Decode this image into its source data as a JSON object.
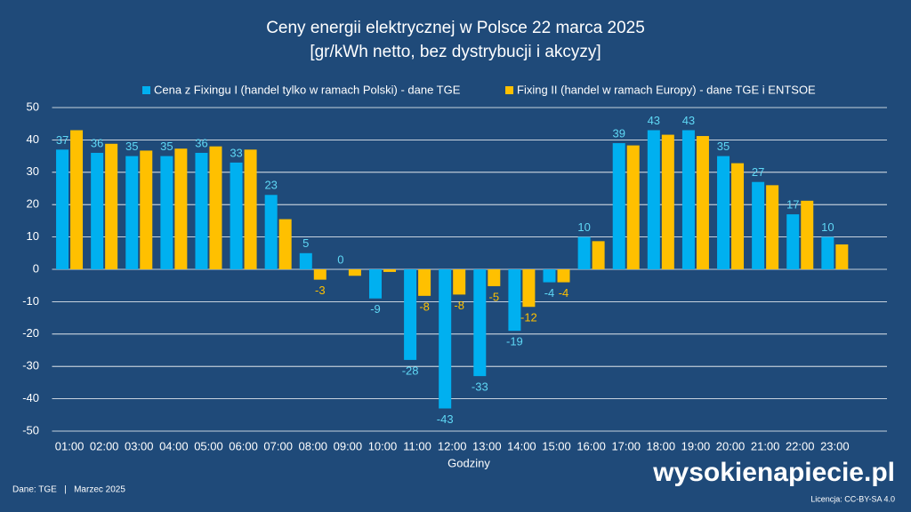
{
  "chart_data": {
    "type": "bar",
    "title": "Ceny energii elektrycznej w Polsce 22 marca 2025",
    "subtitle": "[gr/kWh netto, bez dystrybucji i akcyzy]",
    "x_label": "Godziny",
    "categories": [
      "01:00",
      "02:00",
      "03:00",
      "04:00",
      "05:00",
      "06:00",
      "07:00",
      "08:00",
      "09:00",
      "10:00",
      "11:00",
      "12:00",
      "13:00",
      "14:00",
      "15:00",
      "16:00",
      "17:00",
      "18:00",
      "19:00",
      "20:00",
      "21:00",
      "22:00",
      "23:00",
      null
    ],
    "series": [
      {
        "name": "Cena z Fixingu I (handel tylko w ramach Polski) - dane TGE",
        "color": "#00b0f0",
        "values": [
          37,
          36,
          35,
          35,
          36,
          33,
          23,
          5,
          0,
          -9,
          -28,
          -43,
          -33,
          -19,
          -4,
          10,
          39,
          43,
          43,
          35,
          27,
          17,
          10,
          null
        ]
      },
      {
        "name": "Fixing II (handel w ramach Europy) - dane TGE i ENTSOE",
        "color": "#ffc000",
        "values": [
          43,
          38.8,
          36.7,
          37.3,
          38,
          37,
          15.5,
          -3.2,
          -2,
          -0.8,
          -8.2,
          -7.8,
          -5.2,
          -11.6,
          -4,
          8.7,
          38.3,
          41.6,
          41.2,
          32.8,
          26,
          21.2,
          7.7,
          null
        ],
        "value_labels": [
          null,
          null,
          null,
          null,
          null,
          null,
          null,
          "-3",
          null,
          null,
          "-8",
          "-8",
          "-5",
          "-12",
          "-4",
          null,
          null,
          null,
          null,
          null,
          null,
          null,
          null,
          null
        ]
      }
    ],
    "ylim": [
      -50,
      50
    ],
    "yticks": [
      -50,
      -40,
      -30,
      -20,
      -10,
      0,
      10,
      20,
      30,
      40,
      50
    ],
    "grid": true,
    "legend": "top",
    "source": "Dane: TGE   |   Marzec 2025",
    "brand": "wysokienapiecie.pl",
    "license": "Licencja: CC-BY-SA 4.0"
  }
}
